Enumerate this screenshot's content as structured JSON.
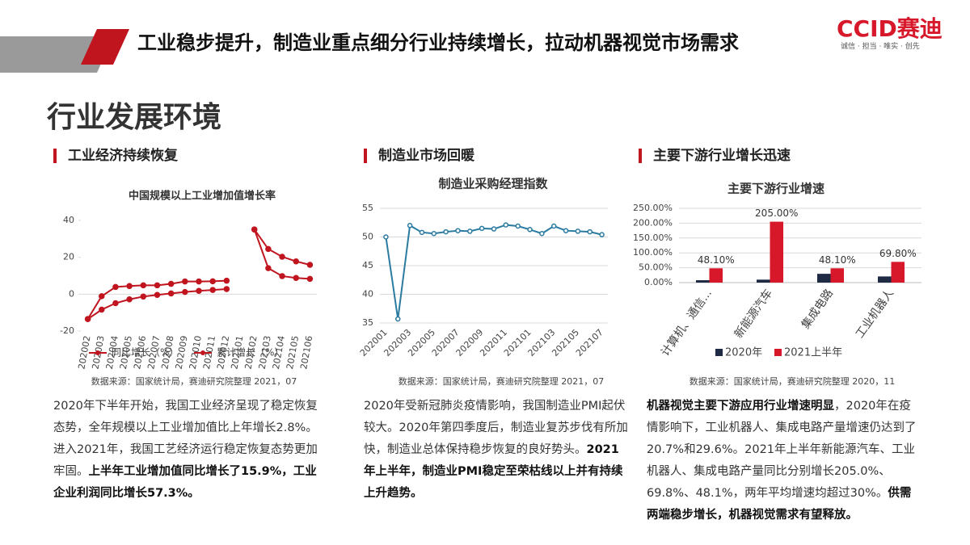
{
  "header": {
    "title": "工业稳步提升，制造业重点细分行业持续增长，拉动机器视觉市场需求",
    "subtitle": "行业发展环境",
    "logo": "CCID赛迪",
    "slogan": "诚信 · 担当 · 唯实 · 创先"
  },
  "sections": [
    {
      "heading": "工业经济持续恢复",
      "source": "数据来源：国家统计局，赛迪研究院整理 2021，07",
      "body": [
        {
          "text": "2020年下半年开始，我国工业经济呈现了稳定恢复态势，全年规模以上工业增加值比上年增长2.8%。进入2021年，我国工艺经济运行稳定恢复态势更加牢固。",
          "bold": false
        },
        {
          "text": "上半年工业增加值同比增长了15.9%，工业企业利润同比增长57.3%。",
          "bold": true
        }
      ]
    },
    {
      "heading": "制造业市场回暖",
      "source": "数据来源：国家统计局，赛迪研究院整理 2021，07",
      "body": [
        {
          "text": "2020年受新冠肺炎疫情影响，我国制造业PMI起伏较大。2020年第四季度后，制造业复苏步伐有所加快，制造业总体保持稳步恢复的良好势头。",
          "bold": false
        },
        {
          "text": "2021年上半年，制造业PMI稳定至荣枯线以上并有持续上升趋势。",
          "bold": true
        }
      ]
    },
    {
      "heading": "主要下游行业增长迅速",
      "source": "数据来源：国家统计局，赛迪研究院整理 2020，11",
      "body": [
        {
          "text": "机器视觉主要下游应用行业增速明显",
          "bold": true
        },
        {
          "text": "，2020年在疫情影响下，工业机器人、集成电路产量增速仍达到了20.7%和29.6%。2021年上半年新能源汽车、工业机器人、集成电路产量同比分别增长205.0%、69.8%、48.1%，两年平均增速均超过30%。",
          "bold": false
        },
        {
          "text": "供需两端稳步增长，机器视觉需求有望释放。",
          "bold": true
        }
      ]
    }
  ],
  "chart_data": [
    {
      "type": "line",
      "title": "中国规模以上工业增加值增长率",
      "categories": [
        "202002",
        "202003",
        "202004",
        "202005",
        "202006",
        "202007",
        "202008",
        "202009",
        "202010",
        "202011",
        "202012",
        "202101",
        "202102",
        "202103",
        "202104",
        "202105",
        "202106"
      ],
      "series": [
        {
          "name": "同比增长（%）",
          "color": "#c0141e",
          "values": [
            -13.5,
            -1.1,
            3.9,
            4.4,
            4.8,
            4.8,
            5.6,
            6.9,
            6.9,
            7.0,
            7.3,
            null,
            35.1,
            14.1,
            9.8,
            8.8,
            8.3
          ]
        },
        {
          "name": "累计增长（%）",
          "color": "#c0141e",
          "values": [
            -13.5,
            -8.4,
            -4.9,
            -2.8,
            -1.3,
            -0.4,
            0.4,
            1.2,
            1.8,
            2.3,
            2.8,
            null,
            35.1,
            24.5,
            20.3,
            17.8,
            15.9
          ]
        }
      ],
      "ylim": [
        -20,
        40
      ],
      "yticks": [
        -20,
        0,
        20,
        40
      ],
      "grid": false,
      "legend": "bottom"
    },
    {
      "type": "line",
      "title": "制造业采购经理指数",
      "categories": [
        "202001",
        null,
        "202003",
        null,
        "202005",
        null,
        "202007",
        null,
        "202009",
        null,
        "202011",
        null,
        "202101",
        null,
        "202103",
        null,
        "202105",
        null,
        "202107"
      ],
      "series": [
        {
          "name": null,
          "color": "#2b7ba1",
          "values": [
            50.0,
            35.7,
            52.0,
            50.8,
            50.6,
            50.9,
            51.1,
            51.0,
            51.5,
            51.4,
            52.1,
            51.9,
            51.3,
            50.6,
            51.9,
            51.1,
            51.0,
            50.9,
            50.4
          ]
        }
      ],
      "ylim": [
        35,
        55
      ],
      "yticks": [
        35,
        40,
        45,
        50,
        55
      ],
      "grid": true
    },
    {
      "type": "bar",
      "title": "主要下游行业增速",
      "categories": [
        "计算机、通信...",
        "新能源汽车",
        "集成电路",
        "工业机器人"
      ],
      "series": [
        {
          "name": "2020年",
          "color": "#1f2a44",
          "values": [
            8.0,
            10.0,
            29.6,
            20.7
          ]
        },
        {
          "name": "2021上半年",
          "color": "#d7182a",
          "values": [
            48.1,
            205.0,
            48.1,
            69.8
          ],
          "value_labels": [
            "48.10%",
            "205.00%",
            "48.10%",
            "69.80%"
          ]
        }
      ],
      "ylim": [
        0,
        250
      ],
      "yticks": [
        {
          "value": 0,
          "label": "0.00%"
        },
        {
          "value": 50,
          "label": "50.00%"
        },
        {
          "value": 100,
          "label": "100.00%"
        },
        {
          "value": 150,
          "label": "150.00%"
        },
        {
          "value": 200,
          "label": "200.00%"
        },
        {
          "value": 250,
          "label": "250.00%"
        }
      ],
      "grid": true,
      "legend": "bottom"
    }
  ]
}
